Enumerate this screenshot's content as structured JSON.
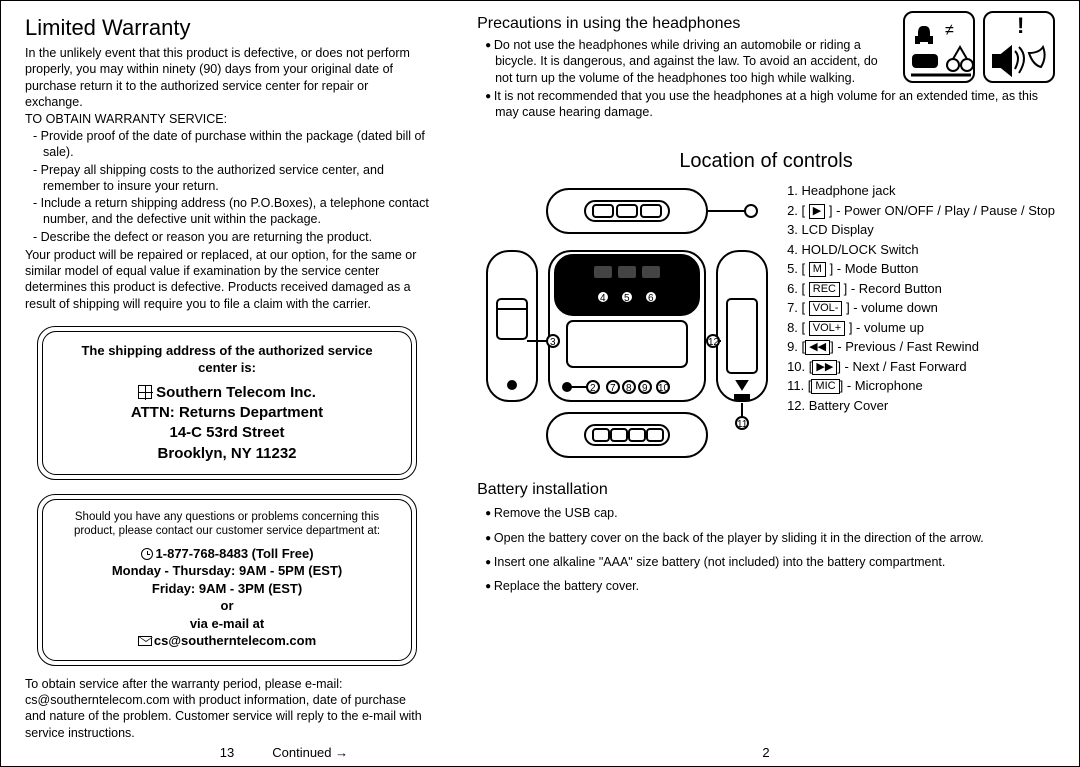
{
  "left": {
    "title": "Limited Warranty",
    "intro": "In the unlikely event that this product is defective, or does not perform properly, you may within ninety (90) days from your original date of purchase return it to the authorized service center for repair or exchange.",
    "to_obtain": "TO OBTAIN WARRANTY SERVICE:",
    "bullets": [
      "- Provide proof of the date of purchase within the package (dated bill of sale).",
      "- Prepay all shipping costs to the authorized service center, and remember to insure your return.",
      "- Include a return shipping address (no P.O.Boxes), a telephone contact number, and the defective unit   within the package.",
      "- Describe the defect or reason you are returning the product."
    ],
    "repair_para": "Your product will be repaired or replaced, at our option, for the same or similar model of equal value if examination by the service center determines this product is defective.  Products received damaged as a result of shipping will require you to file a claim with the carrier.",
    "ship_box": {
      "header": "The shipping address of the authorized service center is:",
      "lines": [
        "Southern Telecom Inc.",
        "ATTN: Returns Department",
        "14-C 53rd Street",
        "Brooklyn, NY 11232"
      ]
    },
    "help_box": {
      "lead": "Should you have any questions or problems concerning this product, please contact our customer service department at:",
      "phone": "1-877-768-8483 (Toll Free)",
      "hours1": "Monday - Thursday: 9AM - 5PM (EST)",
      "hours2": "Friday: 9AM - 3PM (EST)",
      "or": "or",
      "via": "via e-mail at",
      "email": "cs@southerntelecom.com"
    },
    "post_para": "To obtain service after the warranty period, please e-mail: cs@southerntelecom.com with product information, date of purchase and nature of the problem.  Customer service will reply to the e-mail with service instructions.",
    "page_num": "13",
    "continued": "Continued →"
  },
  "right": {
    "precautions_title": "Precautions in using the headphones",
    "precautions": [
      "Do not use the headphones while driving an automobile or riding a bicycle.  It is dangerous, and against the law.  To avoid an accident, do not turn up the volume of the headphones too high while walking.",
      "It is not recommended that you use the headphones at a high volume for an extended time, as this may cause hearing damage."
    ],
    "controls_title": "Location of controls",
    "legend": [
      {
        "n": "1.",
        "t": "Headphone jack"
      },
      {
        "n": "2.",
        "pre": "[ ",
        "btn": "▶",
        "post": " ] - Power ON/OFF / Play / Pause / Stop"
      },
      {
        "n": "3.",
        "t": "LCD Display"
      },
      {
        "n": "4.",
        "t": "HOLD/LOCK Switch"
      },
      {
        "n": "5.",
        "pre": "[ ",
        "btn": "M",
        "post": " ] - Mode Button"
      },
      {
        "n": "6.",
        "pre": "[ ",
        "btn": "REC",
        "post": " ] - Record Button"
      },
      {
        "n": "7.",
        "pre": "[ ",
        "btn": "VOL-",
        "post": " ] - volume down"
      },
      {
        "n": "8.",
        "pre": "[ ",
        "btn": "VOL+",
        "post": " ] - volume up"
      },
      {
        "n": "9.",
        "pre": "[",
        "btn": "◀◀",
        "post": "] - Previous / Fast Rewind"
      },
      {
        "n": "10.",
        "pre": "[",
        "btn": "▶▶",
        "post": "] - Next / Fast Forward"
      },
      {
        "n": "11.",
        "pre": "[",
        "btn": "MIC",
        "post": "] - Microphone"
      },
      {
        "n": "12.",
        "t": "Battery Cover"
      }
    ],
    "battery_title": "Battery installation",
    "battery_steps": [
      "Remove the USB cap.",
      "Open the battery cover on the back of the player by sliding it in the direction of the arrow.",
      "Insert one alkaline \"AAA\" size battery (not included) into the battery compartment.",
      "Replace the battery cover."
    ],
    "page_num": "2"
  }
}
